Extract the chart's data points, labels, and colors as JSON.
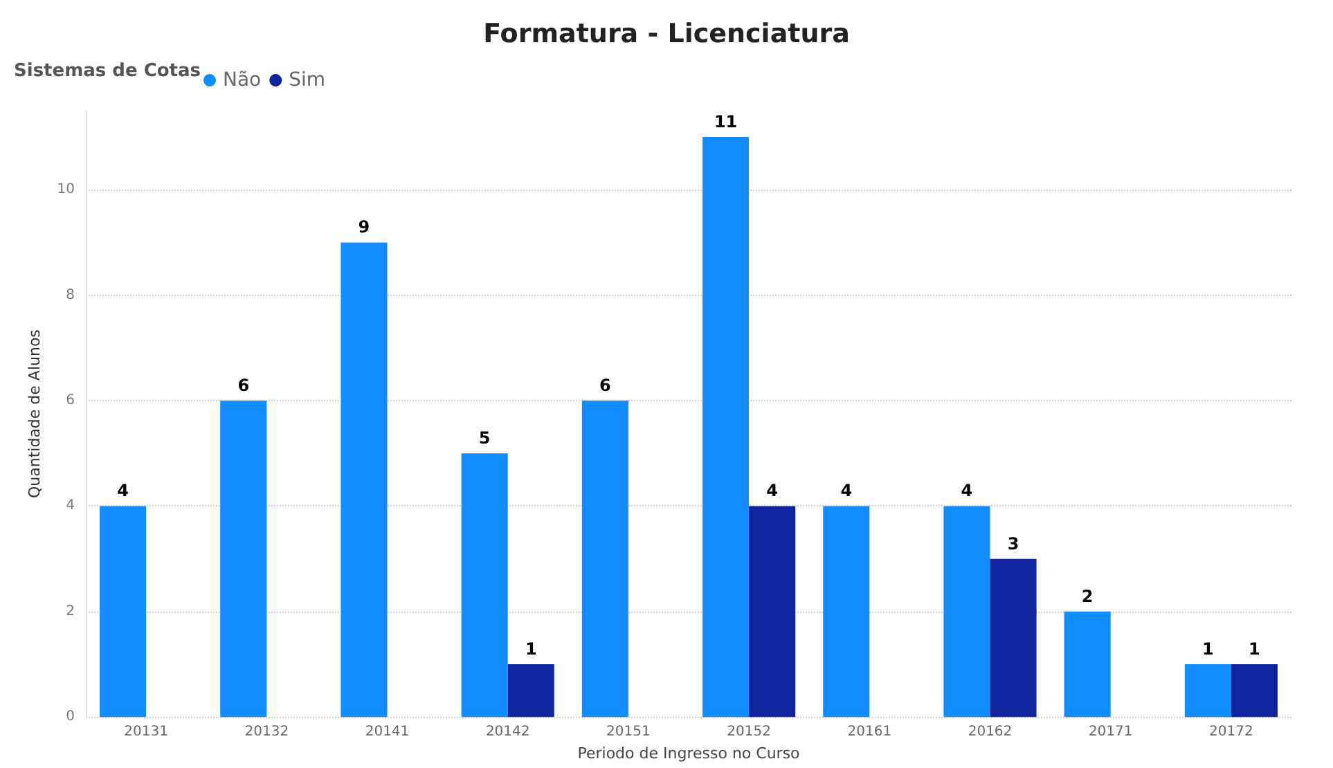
{
  "chart_data": {
    "type": "bar",
    "title": "Formatura - Licenciatura",
    "xlabel": "Periodo de Ingresso no Curso",
    "ylabel": "Quantidade de Alunos",
    "legend_title": "Sistemas de Cotas",
    "categories": [
      "20131",
      "20132",
      "20141",
      "20142",
      "20151",
      "20152",
      "20161",
      "20162",
      "20171",
      "20172"
    ],
    "series": [
      {
        "name": "Não",
        "color": "#118dff",
        "values": [
          4,
          6,
          9,
          5,
          6,
          11,
          4,
          4,
          2,
          1
        ]
      },
      {
        "name": "Sim",
        "color": "#12239e",
        "values": [
          null,
          null,
          null,
          1,
          null,
          4,
          null,
          3,
          null,
          1
        ]
      }
    ],
    "ylim": [
      0,
      11.5
    ],
    "yticks": [
      0,
      2,
      4,
      6,
      8,
      10
    ],
    "grid": "y",
    "legend": "top left",
    "data_labels": true
  }
}
